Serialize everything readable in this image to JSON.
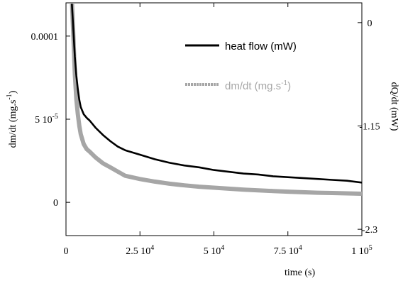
{
  "chart_data": {
    "type": "line",
    "x_axis": {
      "label": "time (s)",
      "range": [
        0,
        100000
      ],
      "ticks": [
        {
          "value": 0,
          "label": "0"
        },
        {
          "value": 25000,
          "label": "2.5 10"
        },
        {
          "value": 50000,
          "label": "5 10"
        },
        {
          "value": 75000,
          "label": "7.5 10"
        },
        {
          "value": 100000,
          "label": "1 10"
        }
      ],
      "tick_sup": [
        "",
        "4",
        "4",
        "4",
        "5"
      ]
    },
    "y_left": {
      "label_main": "dm/dt (mg.s",
      "label_sup": "-1",
      "label_tail": ")",
      "range": [
        -2e-05,
        0.00012
      ],
      "ticks": [
        {
          "value": 0.0001,
          "label": "0.0001",
          "sup": ""
        },
        {
          "value": 5e-05,
          "label": "5 10",
          "sup": "-5"
        },
        {
          "value": 0,
          "label": "0",
          "sup": ""
        }
      ]
    },
    "y_right": {
      "label": "dQ/dt (mW)",
      "range": [
        -2.37,
        0.22
      ],
      "ticks": [
        {
          "value": 0,
          "label": "0"
        },
        {
          "value": -1.15,
          "label": "-1.15"
        },
        {
          "value": -2.3,
          "label": "-2.3"
        }
      ]
    },
    "series": [
      {
        "name": "heat flow (mW)",
        "axis": "right",
        "color": "#000000",
        "x": [
          2000,
          2500,
          3000,
          3500,
          4000,
          4500,
          5000,
          6000,
          7000,
          8000,
          10000,
          12500,
          15000,
          17500,
          20000,
          25000,
          30000,
          35000,
          40000,
          45000,
          50000,
          55000,
          60000,
          65000,
          70000,
          75000,
          80000,
          85000,
          90000,
          95000,
          100000
        ],
        "y": [
          0.21,
          -0.08,
          -0.38,
          -0.59,
          -0.74,
          -0.86,
          -0.94,
          -1.02,
          -1.06,
          -1.09,
          -1.17,
          -1.25,
          -1.32,
          -1.38,
          -1.42,
          -1.47,
          -1.52,
          -1.56,
          -1.59,
          -1.61,
          -1.64,
          -1.66,
          -1.68,
          -1.69,
          -1.71,
          -1.72,
          -1.73,
          -1.74,
          -1.75,
          -1.76,
          -1.78
        ]
      },
      {
        "name": "dm/dt (mg.s",
        "name_sup": "-1",
        "name_tail": ")",
        "axis": "left",
        "color": "#a6a6a6",
        "x": [
          2000,
          2500,
          3000,
          3500,
          4000,
          4500,
          5000,
          6000,
          7000,
          8000,
          10000,
          12500,
          15000,
          17500,
          20000,
          25000,
          30000,
          35000,
          40000,
          45000,
          50000,
          55000,
          60000,
          65000,
          70000,
          75000,
          80000,
          85000,
          90000,
          95000,
          100000
        ],
        "y": [
          0.000122,
          0.0001,
          7.7e-05,
          6.2e-05,
          5.3e-05,
          4.6e-05,
          4.1e-05,
          3.5e-05,
          3.2e-05,
          3.05e-05,
          2.7e-05,
          2.35e-05,
          2.1e-05,
          1.85e-05,
          1.6e-05,
          1.4e-05,
          1.25e-05,
          1.12e-05,
          1.02e-05,
          9.4e-06,
          8.8e-06,
          8.2e-06,
          7.6e-06,
          7.2e-06,
          6.8e-06,
          6.4e-06,
          6.1e-06,
          5.8e-06,
          5.6e-06,
          5.4e-06,
          5.2e-06
        ]
      }
    ],
    "legend": {
      "placement": "top-right"
    },
    "grid": false
  }
}
